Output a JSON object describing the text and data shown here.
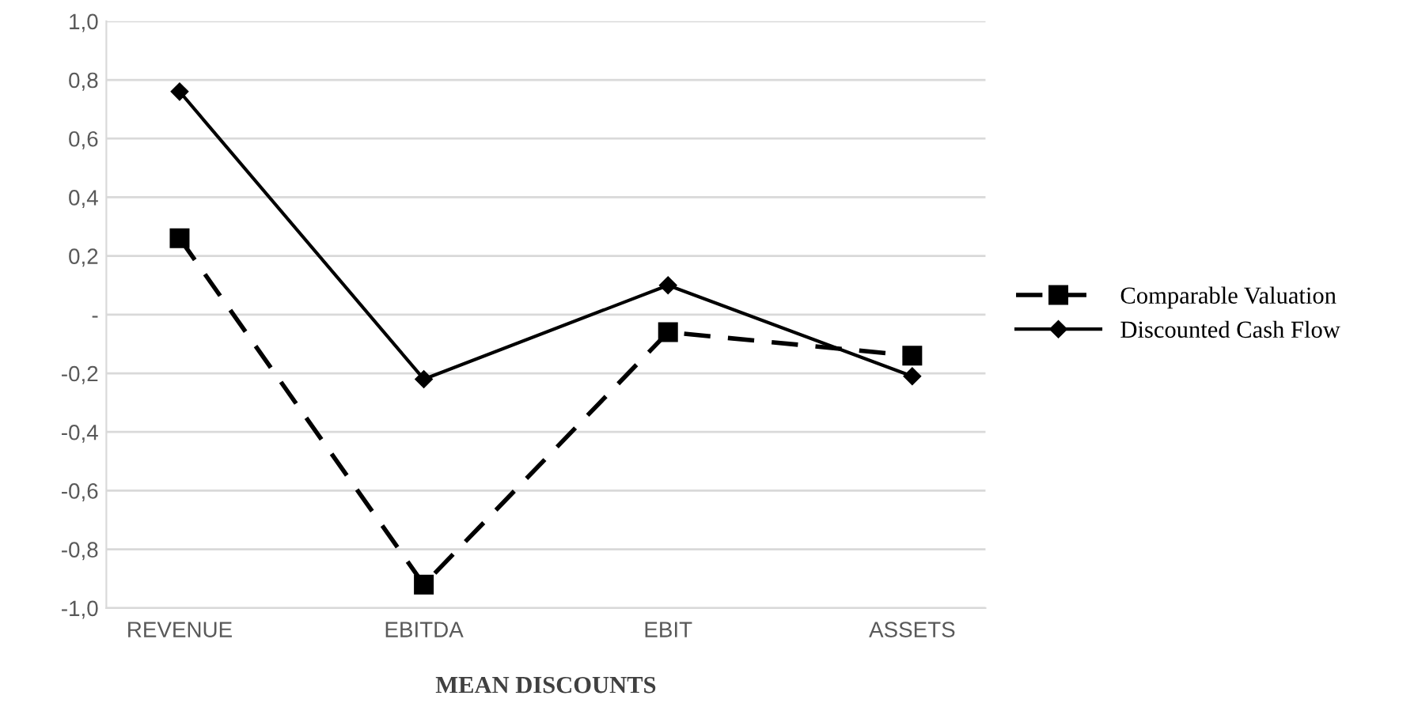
{
  "chart_data": {
    "type": "line",
    "xlabel": "MEAN DISCOUNTS",
    "categories": [
      "REVENUE",
      "EBITDA",
      "EBIT",
      "ASSETS"
    ],
    "series": [
      {
        "name": "Comparable Valuation",
        "color": "#000000",
        "marker": "square",
        "line_style": "dashed",
        "values": [
          0.26,
          -0.92,
          -0.06,
          -0.14
        ]
      },
      {
        "name": "Discounted Cash Flow",
        "color": "#000000",
        "marker": "diamond",
        "line_style": "solid",
        "values": [
          0.76,
          -0.22,
          0.1,
          -0.21
        ]
      }
    ],
    "ylim": [
      -1.0,
      1.0
    ],
    "yticks": [
      {
        "value": -1.0,
        "label": "-1,0"
      },
      {
        "value": -0.8,
        "label": "-0,8"
      },
      {
        "value": -0.6,
        "label": "-0,6"
      },
      {
        "value": -0.4,
        "label": "-0,4"
      },
      {
        "value": -0.2,
        "label": "-0,2"
      },
      {
        "value": 0,
        "label": "-"
      },
      {
        "value": 0.2,
        "label": "0,2"
      },
      {
        "value": 0.4,
        "label": "0,4"
      },
      {
        "value": 0.6,
        "label": "0,6"
      },
      {
        "value": 0.8,
        "label": "0,8"
      },
      {
        "value": 1.0,
        "label": "1,0"
      }
    ],
    "grid": "y",
    "legend": "right"
  }
}
